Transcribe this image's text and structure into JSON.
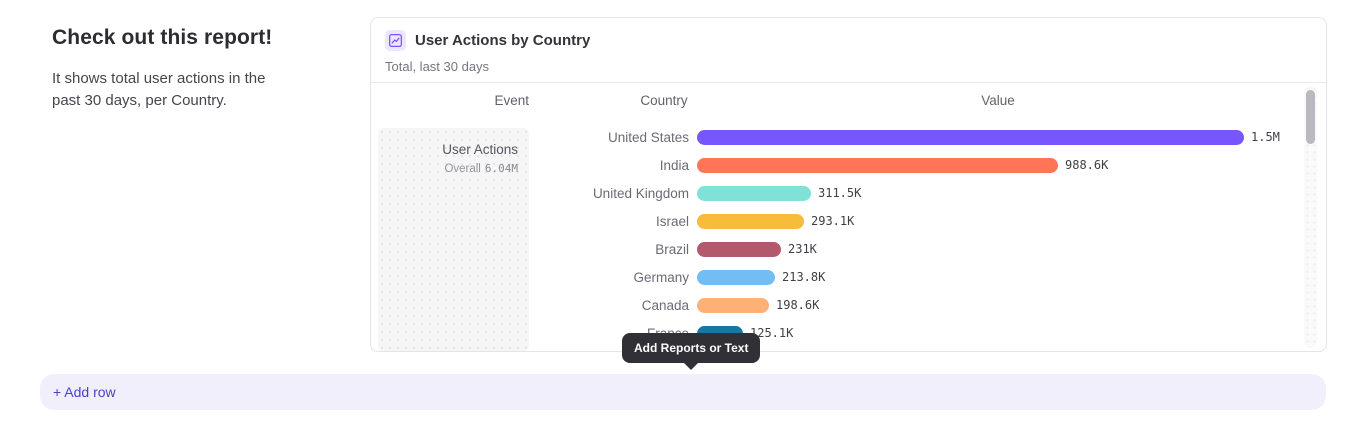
{
  "intro": {
    "heading": "Check out this report!",
    "description": "It shows total user actions in the past 30 days, per Country."
  },
  "card": {
    "title": "User Actions by Country",
    "subtitle": "Total, last 30 days",
    "icon": "insights-chart-icon",
    "columns": {
      "event": "Event",
      "country": "Country",
      "value": "Value"
    },
    "event_cell": {
      "name": "User Actions",
      "overall_label": "Overall",
      "overall_value": "6.04M"
    }
  },
  "chart_data": {
    "type": "bar",
    "orientation": "horizontal",
    "title": "User Actions by Country",
    "subtitle": "Total, last 30 days",
    "categories": [
      "United States",
      "India",
      "United Kingdom",
      "Israel",
      "Brazil",
      "Germany",
      "Canada",
      "France"
    ],
    "values": [
      1500000,
      988600,
      311500,
      293100,
      231000,
      213800,
      198600,
      125100
    ],
    "value_labels": [
      "1.5M",
      "988.6K",
      "311.5K",
      "293.1K",
      "231K",
      "213.8K",
      "198.6K",
      "125.1K"
    ],
    "colors": [
      "#7856ff",
      "#ff7557",
      "#80e1d9",
      "#f8bc3b",
      "#b2596e",
      "#72bef4",
      "#ffb077",
      "#16789e"
    ],
    "xlim": [
      0,
      1500000
    ],
    "series_event": "User Actions",
    "series_overall": "6.04M",
    "grid": false,
    "legend": "none"
  },
  "tooltip": {
    "label": "Add Reports or Text"
  },
  "add_row": {
    "label": "+ Add row"
  },
  "colors": {
    "accent_purple": "#7856ff",
    "add_row_bg": "#f1effb",
    "add_row_text": "#4a41c8",
    "tooltip_bg": "#303036"
  }
}
